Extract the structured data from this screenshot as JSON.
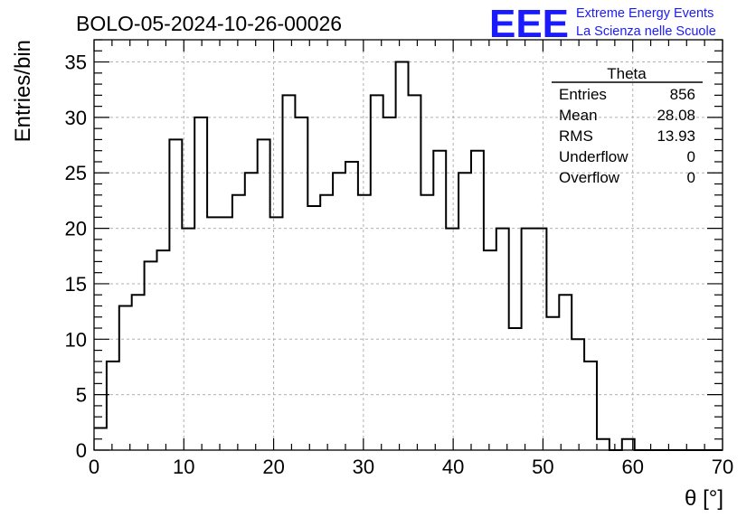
{
  "chart_data": {
    "type": "histogram",
    "title": "BOLO-05-2024-10-26-00026",
    "logo": {
      "mark": "EEE",
      "line1": "Extreme Energy Events",
      "line2": "La Scienza nelle Scuole",
      "color": "#1a1aff"
    },
    "xlabel": "θ [°]",
    "ylabel": "Entries/bin",
    "xlim": [
      0,
      70
    ],
    "ylim": [
      0,
      37
    ],
    "xticks": [
      0,
      10,
      20,
      30,
      40,
      50,
      60,
      70
    ],
    "yticks": [
      0,
      5,
      10,
      15,
      20,
      25,
      30,
      35
    ],
    "grid": true,
    "bin_width": 1.4,
    "bin_start": 0,
    "values": [
      2,
      8,
      13,
      14,
      17,
      18,
      28,
      20,
      30,
      21,
      21,
      23,
      25,
      28,
      21,
      32,
      30,
      22,
      23,
      25,
      26,
      23,
      32,
      30,
      35,
      32,
      23,
      27,
      20,
      25,
      27,
      18,
      20,
      11,
      20,
      20,
      12,
      14,
      10,
      8,
      1,
      0,
      1,
      0,
      0,
      0,
      0,
      0,
      0,
      0
    ],
    "stats": {
      "name": "Theta",
      "rows": [
        {
          "label": "Entries",
          "value": "856"
        },
        {
          "label": "Mean",
          "value": "28.08"
        },
        {
          "label": "RMS",
          "value": "13.93"
        },
        {
          "label": "Underflow",
          "value": "0"
        },
        {
          "label": "Overflow",
          "value": "0"
        }
      ]
    }
  }
}
